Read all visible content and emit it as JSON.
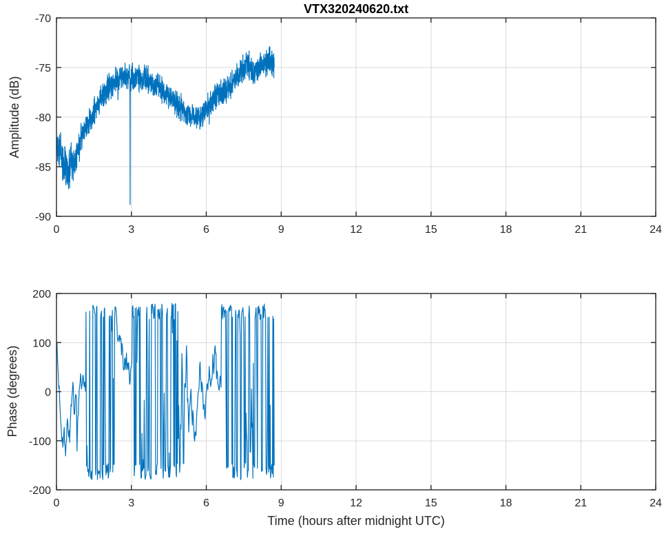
{
  "figure": {
    "title": "VTX320240620.txt",
    "xlabel": "Time (hours after midnight UTC)"
  },
  "style": {
    "line_color": "#0072BD",
    "axis_color": "#262626",
    "grid_color": "#d9d9d9",
    "tick_label_color": "#262626",
    "title_color": "#000000",
    "background": "#ffffff"
  },
  "chart_data": [
    {
      "id": "amplitude",
      "type": "line",
      "title": "VTX320240620.txt",
      "xlabel": "",
      "ylabel": "Amplitude (dB)",
      "xlim": [
        0,
        24
      ],
      "ylim": [
        -90,
        -70
      ],
      "xticks": [
        0,
        3,
        6,
        9,
        12,
        15,
        18,
        21,
        24
      ],
      "yticks": [
        -90,
        -85,
        -80,
        -75,
        -70
      ],
      "grid": true,
      "legend": null,
      "x_data_range": [
        0,
        8.72
      ],
      "series": [
        {
          "name": "amplitude",
          "color": "#0072BD",
          "trend": [
            [
              0,
              -82.3
            ],
            [
              0.1,
              -83.2
            ],
            [
              0.25,
              -84.5
            ],
            [
              0.45,
              -85.2
            ],
            [
              0.65,
              -84.8
            ],
            [
              0.85,
              -83.4
            ],
            [
              1.05,
              -81.9
            ],
            [
              1.25,
              -80.7
            ],
            [
              1.5,
              -79.4
            ],
            [
              1.8,
              -78.1
            ],
            [
              2.1,
              -77.0
            ],
            [
              2.4,
              -76.2
            ],
            [
              2.7,
              -75.7
            ],
            [
              2.95,
              -76.0
            ],
            [
              3.2,
              -76.0
            ],
            [
              3.5,
              -76.1
            ],
            [
              3.8,
              -76.5
            ],
            [
              4.1,
              -77.0
            ],
            [
              4.5,
              -77.8
            ],
            [
              4.9,
              -78.8
            ],
            [
              5.2,
              -79.6
            ],
            [
              5.45,
              -80.1
            ],
            [
              5.65,
              -80.2
            ],
            [
              5.9,
              -79.5
            ],
            [
              6.2,
              -78.5
            ],
            [
              6.5,
              -77.6
            ],
            [
              6.75,
              -77.5
            ],
            [
              7.0,
              -76.8
            ],
            [
              7.25,
              -75.8
            ],
            [
              7.5,
              -74.9
            ],
            [
              7.7,
              -74.7
            ],
            [
              7.9,
              -75.6
            ],
            [
              8.05,
              -75.3
            ],
            [
              8.3,
              -74.6
            ],
            [
              8.55,
              -74.3
            ],
            [
              8.72,
              -74.8
            ]
          ],
          "noise_db": 0.85,
          "noise_scale": [
            [
              0,
              1.5
            ],
            [
              0.6,
              1.45
            ],
            [
              1.1,
              1.0
            ],
            [
              2.0,
              0.92
            ],
            [
              8.72,
              0.92
            ]
          ],
          "spike": {
            "t": 2.95,
            "min_db": -88.8
          },
          "samples": 1500,
          "seed": 42
        }
      ]
    },
    {
      "id": "phase",
      "type": "line",
      "title": "",
      "xlabel": "Time (hours after midnight UTC)",
      "ylabel": "Phase (degrees)",
      "xlim": [
        0,
        24
      ],
      "ylim": [
        -200,
        200
      ],
      "xticks": [
        0,
        3,
        6,
        9,
        12,
        15,
        18,
        21,
        24
      ],
      "yticks": [
        -200,
        -100,
        0,
        100,
        200
      ],
      "grid": true,
      "legend": null,
      "x_data_range": [
        0,
        8.72
      ],
      "series": [
        {
          "name": "phase",
          "color": "#0072BD",
          "wrap_range": [
            -180,
            180
          ],
          "start_value": 160,
          "segments": [
            {
              "t0": 0.0,
              "t1": 1.17,
              "mode": "wander",
              "center": -60,
              "vol": 30
            },
            {
              "t0": 1.17,
              "t1": 2.42,
              "mode": "wrap",
              "center": 0,
              "vol": 95
            },
            {
              "t0": 2.42,
              "t1": 3.03,
              "mode": "wander",
              "center": 55,
              "vol": 30
            },
            {
              "t0": 3.03,
              "t1": 4.88,
              "mode": "wrap",
              "center": 0,
              "vol": 95
            },
            {
              "t0": 4.88,
              "t1": 5.25,
              "mode": "mixed",
              "center": -40,
              "vol": 60
            },
            {
              "t0": 5.25,
              "t1": 5.95,
              "mode": "wander",
              "center": -45,
              "vol": 30
            },
            {
              "t0": 5.95,
              "t1": 6.35,
              "mode": "wander",
              "center": 90,
              "vol": 32
            },
            {
              "t0": 6.35,
              "t1": 6.6,
              "mode": "wander",
              "center": -70,
              "vol": 32
            },
            {
              "t0": 6.6,
              "t1": 7.5,
              "mode": "wrap",
              "center": 0,
              "vol": 95
            },
            {
              "t0": 7.5,
              "t1": 7.85,
              "mode": "mixed",
              "center": 40,
              "vol": 60
            },
            {
              "t0": 7.85,
              "t1": 8.72,
              "mode": "wrap",
              "center": 0,
              "vol": 95
            }
          ],
          "samples": 480,
          "seed": 7
        }
      ]
    }
  ]
}
